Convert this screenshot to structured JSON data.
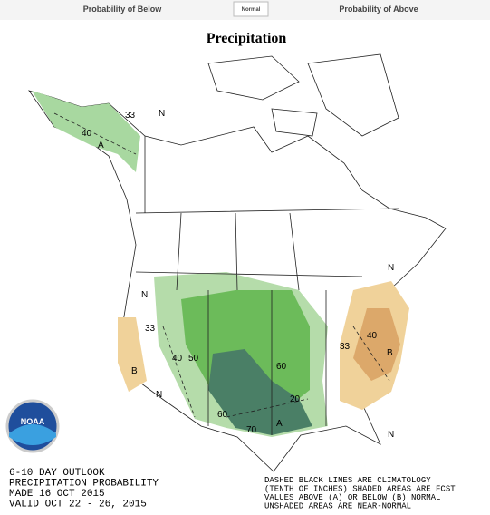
{
  "header": {
    "below": "Probability of Below",
    "normal": "Normal",
    "above": "Probability of Above"
  },
  "title": "Precipitation",
  "logo": "NOAA",
  "map": {
    "labels": [
      "33",
      "40",
      "A",
      "N",
      "33",
      "B",
      "40",
      "50",
      "60",
      "70",
      "A",
      "60",
      "20",
      "33",
      "40",
      "B",
      "N",
      "N",
      "N",
      "N"
    ]
  },
  "footer": {
    "left": [
      "6-10 DAY OUTLOOK",
      "PRECIPITATION PROBABILITY",
      "MADE 16 OCT 2015",
      "VALID OCT 22 - 26, 2015"
    ],
    "right": [
      "DASHED BLACK LINES ARE CLIMATOLOGY",
      "(TENTH OF INCHES) SHADED AREAS ARE FCST",
      "VALUES ABOVE (A) OR BELOW (B) NORMAL",
      "UNSHADED AREAS ARE NEAR-NORMAL"
    ]
  }
}
